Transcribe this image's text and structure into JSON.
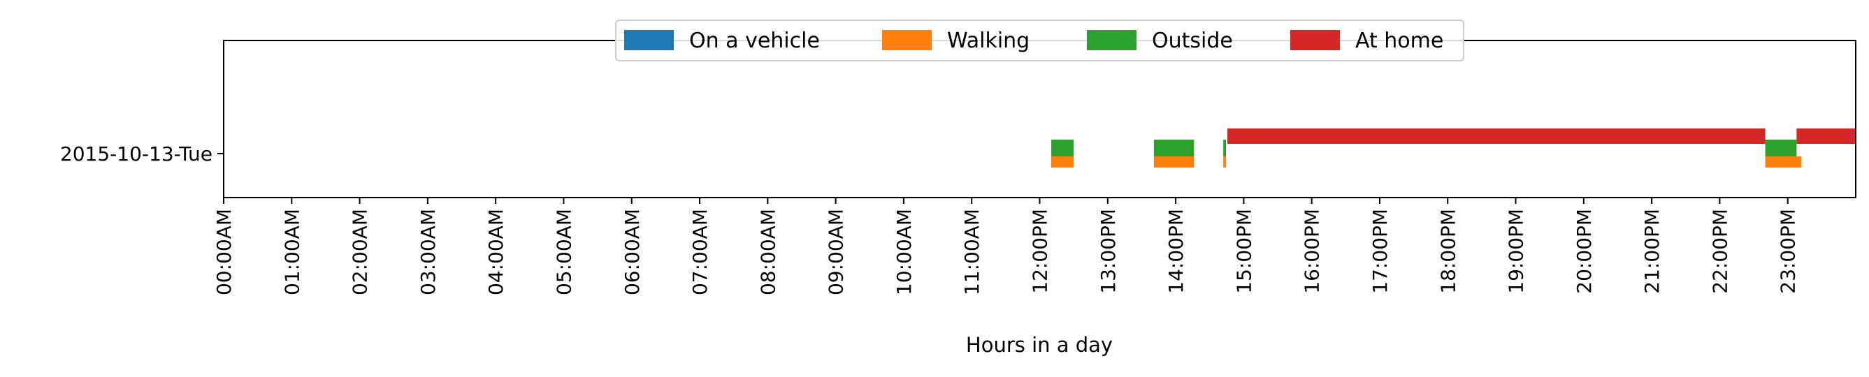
{
  "chart_data": {
    "type": "broken_barh",
    "title": "",
    "xlabel": "Hours in a day",
    "ylabel": "",
    "xlim": [
      0,
      24
    ],
    "grid": false,
    "legend_position": "top-center",
    "x_ticks": [
      {
        "value": 0,
        "label": "00:00AM"
      },
      {
        "value": 1,
        "label": "01:00AM"
      },
      {
        "value": 2,
        "label": "02:00AM"
      },
      {
        "value": 3,
        "label": "03:00AM"
      },
      {
        "value": 4,
        "label": "04:00AM"
      },
      {
        "value": 5,
        "label": "05:00AM"
      },
      {
        "value": 6,
        "label": "06:00AM"
      },
      {
        "value": 7,
        "label": "07:00AM"
      },
      {
        "value": 8,
        "label": "08:00AM"
      },
      {
        "value": 9,
        "label": "09:00AM"
      },
      {
        "value": 10,
        "label": "10:00AM"
      },
      {
        "value": 11,
        "label": "11:00AM"
      },
      {
        "value": 12,
        "label": "12:00PM"
      },
      {
        "value": 13,
        "label": "13:00PM"
      },
      {
        "value": 14,
        "label": "14:00PM"
      },
      {
        "value": 15,
        "label": "15:00PM"
      },
      {
        "value": 16,
        "label": "16:00PM"
      },
      {
        "value": 17,
        "label": "17:00PM"
      },
      {
        "value": 18,
        "label": "18:00PM"
      },
      {
        "value": 19,
        "label": "19:00PM"
      },
      {
        "value": 20,
        "label": "20:00PM"
      },
      {
        "value": 21,
        "label": "21:00PM"
      },
      {
        "value": 22,
        "label": "22:00PM"
      },
      {
        "value": 23,
        "label": "23:00PM"
      }
    ],
    "y_categories": [
      "2015-10-13-Tue"
    ],
    "series": [
      {
        "name": "On a vehicle",
        "color": "#1f77b4",
        "lane": "low",
        "intervals": []
      },
      {
        "name": "Walking",
        "color": "#ff7f0e",
        "lane": "low",
        "intervals": [
          [
            12.17,
            12.5
          ],
          [
            13.68,
            14.27
          ],
          [
            14.7,
            14.74
          ],
          [
            22.67,
            23.2
          ]
        ]
      },
      {
        "name": "Outside",
        "color": "#2ca02c",
        "lane": "mid",
        "intervals": [
          [
            12.17,
            12.5
          ],
          [
            13.68,
            14.27
          ],
          [
            14.7,
            14.74
          ],
          [
            22.67,
            22.9
          ],
          [
            22.9,
            23.13
          ]
        ]
      },
      {
        "name": "At home",
        "color": "#d62728",
        "lane": "high",
        "intervals": [
          [
            14.76,
            22.67
          ],
          [
            23.13,
            24
          ]
        ]
      }
    ]
  }
}
